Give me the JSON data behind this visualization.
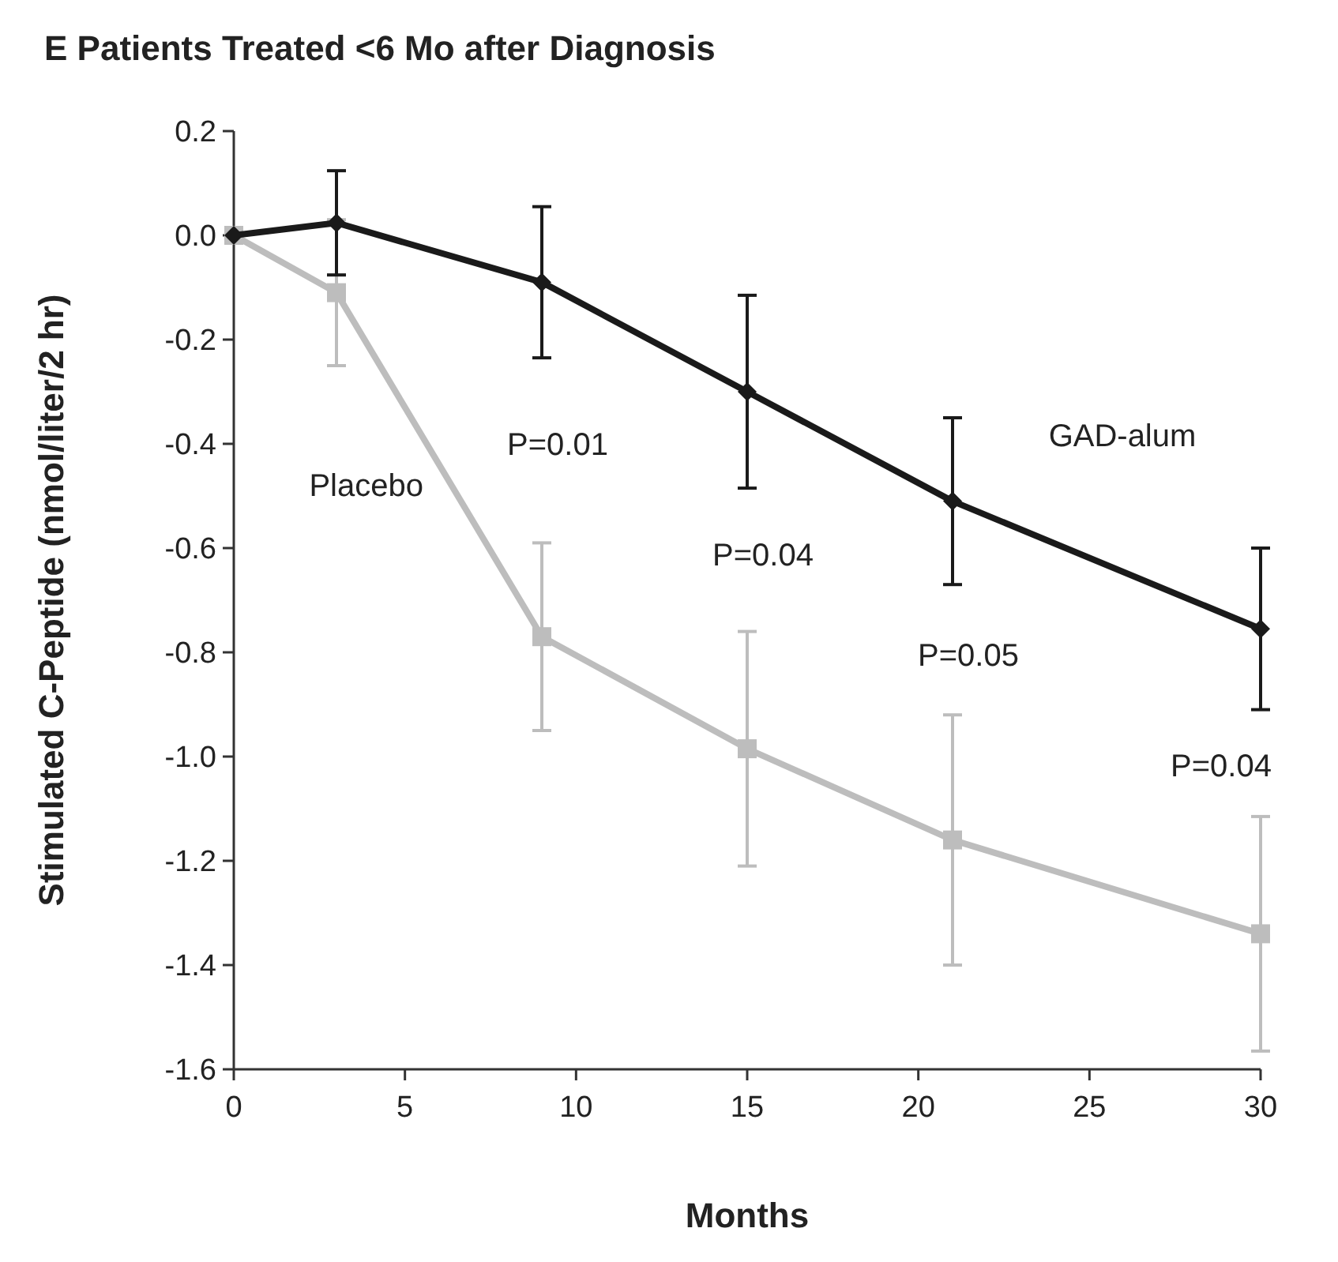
{
  "chart_data": {
    "type": "line",
    "title": "E  Patients Treated <6 Mo after Diagnosis",
    "xlabel": "Months",
    "ylabel": "Stimulated C-Peptide (nmol/liter/2 hr)",
    "x": [
      0,
      3,
      9,
      15,
      21,
      30
    ],
    "xlim": [
      0,
      30
    ],
    "xticks": [
      0,
      5,
      10,
      15,
      20,
      25,
      30
    ],
    "ylim": [
      -1.6,
      0.2
    ],
    "yticks": [
      {
        "value": 0.2,
        "label": "0.2"
      },
      {
        "value": 0,
        "label": "0.0"
      },
      {
        "value": -0.2,
        "label": "-0.2"
      },
      {
        "value": -0.4,
        "label": "-0.4"
      },
      {
        "value": -0.6,
        "label": "-0.6"
      },
      {
        "value": -0.8,
        "label": "-0.8"
      },
      {
        "value": -1.0,
        "label": "-1.0"
      },
      {
        "value": -1.2,
        "label": "-1.2"
      },
      {
        "value": -1.4,
        "label": "-1.4"
      },
      {
        "value": -1.6,
        "label": "-1.6"
      }
    ],
    "grid": false,
    "series": [
      {
        "name": "Placebo",
        "color": "#bdbdbd",
        "marker": "square",
        "values": [
          0,
          -0.11,
          -0.77,
          -0.985,
          -1.16,
          -1.34
        ],
        "errors": [
          null,
          0.14,
          0.18,
          0.225,
          0.24,
          0.225
        ]
      },
      {
        "name": "GAD-alum",
        "color": "#1a1a1a",
        "marker": "diamond",
        "values": [
          0,
          0.024,
          -0.09,
          -0.3,
          -0.51,
          -0.755
        ],
        "errors": [
          null,
          0.1,
          0.145,
          0.185,
          0.16,
          0.155
        ]
      }
    ],
    "annotations": [
      "P=0.01",
      "P=0.04",
      "P=0.05",
      "P=0.04"
    ]
  }
}
